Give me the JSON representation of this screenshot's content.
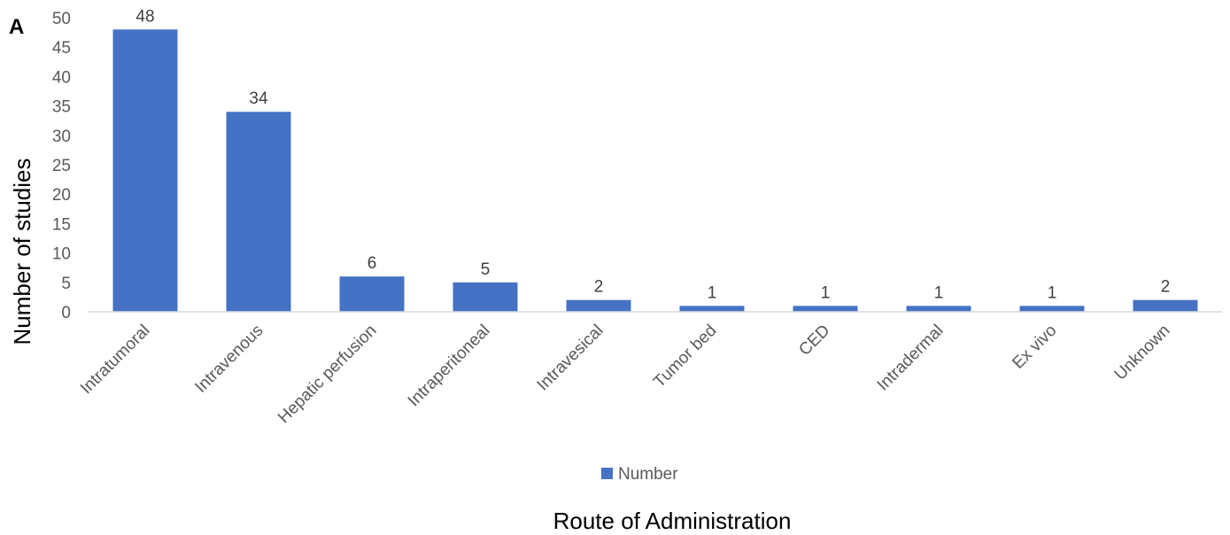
{
  "panel_label": "A",
  "chart_data": {
    "type": "bar",
    "xlabel": "Route of Administration",
    "ylabel": "Number of studies",
    "ylim": [
      0,
      50
    ],
    "yticks": [
      0,
      5,
      10,
      15,
      20,
      25,
      30,
      35,
      40,
      45,
      50
    ],
    "categories": [
      "Intratumoral",
      "Intravenous",
      "Hepatic perfusion",
      "Intraperitoneal",
      "Intravesical",
      "Tumor bed",
      "CED",
      "Intradermal",
      "Ex vivo",
      "Unknown"
    ],
    "series": [
      {
        "name": "Number",
        "color": "#4472C4",
        "values": [
          48,
          34,
          6,
          5,
          2,
          1,
          1,
          1,
          1,
          2
        ]
      }
    ],
    "data_labels": true,
    "grid": false,
    "legend": "bottom-center"
  }
}
